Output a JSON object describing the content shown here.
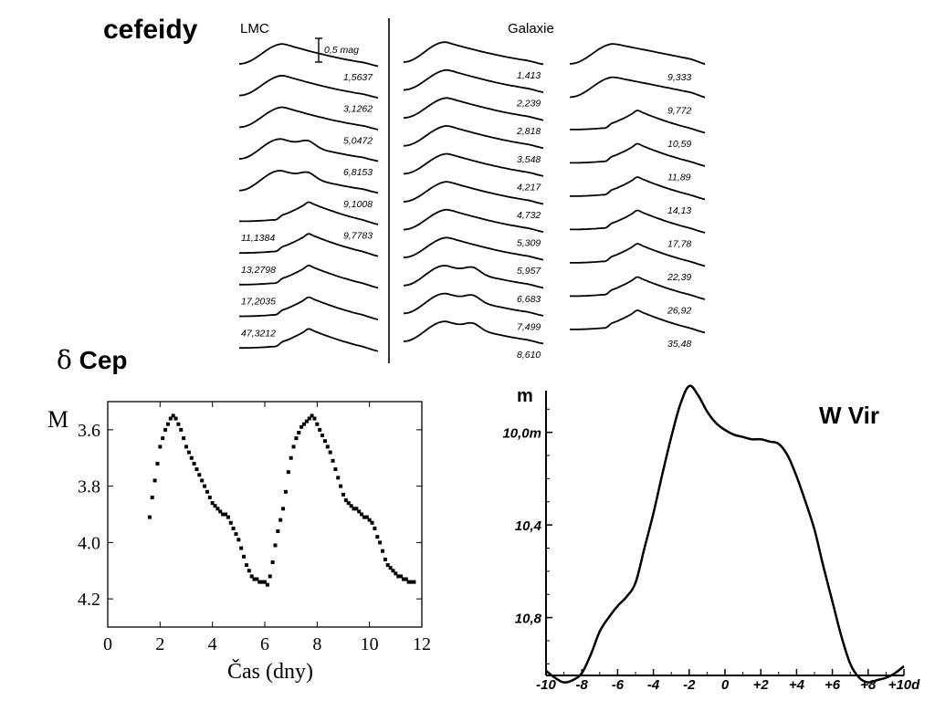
{
  "titles": {
    "main": "cefeidy",
    "dcep_symbol": "δ",
    "dcep_name": "Cep",
    "wvir": "W Vir"
  },
  "chart_data": [
    {
      "type": "line",
      "panel": "cepheid-light-curve-templates",
      "groups": [
        {
          "label": "LMC",
          "periods": [
            "1,5637",
            "3,1262",
            "5,0472",
            "6,8153",
            "9,1008",
            "9,7783",
            "11,1384",
            "13,2798",
            "17,2035",
            "47,3212"
          ]
        },
        {
          "label": "Galaxie",
          "periods": [
            "1,413",
            "2,239",
            "2,818",
            "3,548",
            "4,217",
            "4,732",
            "5,309",
            "5,957",
            "6,683",
            "7,499",
            "8,610"
          ]
        },
        {
          "label": "",
          "periods": [
            "9,333",
            "9,772",
            "10,59",
            "11,89",
            "14,13",
            "17,78",
            "22,39",
            "26,92",
            "35,48"
          ]
        }
      ],
      "scale_bar": "0,5 mag"
    },
    {
      "type": "scatter",
      "panel": "delta-cep",
      "ylabel": "M",
      "xlabel": "Čas (dny)",
      "xlim": [
        0,
        12
      ],
      "ylim": [
        4.3,
        3.5
      ],
      "xticks": [
        "0",
        "2",
        "4",
        "6",
        "8",
        "10",
        "12"
      ],
      "yticks": [
        "3.6",
        "3.8",
        "4.0",
        "4.2"
      ],
      "x": [
        1.6,
        1.7,
        1.8,
        1.9,
        2.0,
        2.1,
        2.2,
        2.3,
        2.4,
        2.5,
        2.6,
        2.7,
        2.8,
        2.9,
        3.0,
        3.1,
        3.2,
        3.3,
        3.4,
        3.5,
        3.6,
        3.7,
        3.8,
        3.9,
        4.0,
        4.1,
        4.2,
        4.3,
        4.4,
        4.5,
        4.6,
        4.7,
        4.8,
        4.9,
        5.0,
        5.1,
        5.2,
        5.3,
        5.4,
        5.5,
        5.6,
        5.7,
        5.8,
        5.9,
        6.0,
        6.1,
        6.2,
        6.3,
        6.4,
        6.5,
        6.6,
        6.7,
        6.8,
        6.9,
        7.0,
        7.1,
        7.2,
        7.3,
        7.4,
        7.5,
        7.6,
        7.7,
        7.8,
        7.9,
        8.0,
        8.1,
        8.2,
        8.3,
        8.4,
        8.5,
        8.6,
        8.7,
        8.8,
        8.9,
        9.0,
        9.1,
        9.2,
        9.3,
        9.4,
        9.5,
        9.6,
        9.7,
        9.8,
        9.9,
        10.0,
        10.1,
        10.2,
        10.3,
        10.4,
        10.5,
        10.6,
        10.7,
        10.8,
        10.9,
        11.0,
        11.1,
        11.2,
        11.3,
        11.4,
        11.5,
        11.6,
        11.7
      ],
      "y": [
        3.91,
        3.84,
        3.78,
        3.72,
        3.66,
        3.63,
        3.6,
        3.58,
        3.56,
        3.55,
        3.56,
        3.58,
        3.6,
        3.63,
        3.66,
        3.68,
        3.7,
        3.72,
        3.74,
        3.76,
        3.78,
        3.8,
        3.82,
        3.84,
        3.86,
        3.87,
        3.88,
        3.89,
        3.9,
        3.9,
        3.91,
        3.93,
        3.95,
        3.97,
        3.99,
        4.02,
        4.05,
        4.08,
        4.1,
        4.12,
        4.13,
        4.13,
        4.14,
        4.14,
        4.14,
        4.15,
        4.12,
        4.07,
        4.01,
        3.96,
        3.92,
        3.88,
        3.82,
        3.75,
        3.7,
        3.66,
        3.63,
        3.61,
        3.59,
        3.58,
        3.57,
        3.56,
        3.55,
        3.56,
        3.58,
        3.6,
        3.62,
        3.64,
        3.66,
        3.68,
        3.71,
        3.74,
        3.77,
        3.8,
        3.83,
        3.85,
        3.86,
        3.87,
        3.88,
        3.88,
        3.89,
        3.9,
        3.91,
        3.91,
        3.92,
        3.93,
        3.95,
        3.98,
        4.0,
        4.03,
        4.06,
        4.08,
        4.09,
        4.1,
        4.11,
        4.12,
        4.12,
        4.13,
        4.13,
        4.14,
        4.14,
        4.14
      ]
    },
    {
      "type": "line",
      "panel": "w-vir",
      "ylabel": "m",
      "xlim": [
        -10,
        10
      ],
      "ylim": [
        11.05,
        9.82
      ],
      "xticks": [
        "-10",
        "-8",
        "-6",
        "-4",
        "-2",
        "0",
        "+2",
        "+4",
        "+6",
        "+8",
        "+10d"
      ],
      "yticks": [
        "10,0m",
        "10,4",
        "10,8"
      ],
      "x": [
        -10,
        -9.5,
        -9,
        -8.5,
        -8,
        -7.5,
        -7,
        -6.5,
        -6,
        -5.5,
        -5,
        -4.5,
        -4,
        -3.5,
        -3,
        -2.5,
        -2,
        -1.5,
        -1,
        -0.5,
        0,
        0.5,
        1,
        1.5,
        2,
        2.5,
        3,
        3.5,
        4,
        4.5,
        5,
        5.5,
        6,
        6.5,
        7,
        7.5,
        8,
        8.5,
        9,
        9.5,
        10
      ],
      "y": [
        11.03,
        11.06,
        11.08,
        11.07,
        11.04,
        10.96,
        10.86,
        10.8,
        10.75,
        10.71,
        10.65,
        10.5,
        10.35,
        10.18,
        10.02,
        9.88,
        9.8,
        9.84,
        9.91,
        9.96,
        9.99,
        10.01,
        10.02,
        10.03,
        10.03,
        10.04,
        10.05,
        10.1,
        10.19,
        10.3,
        10.42,
        10.58,
        10.73,
        10.88,
        11.0,
        11.06,
        11.08,
        11.07,
        11.06,
        11.04,
        11.01
      ]
    }
  ]
}
